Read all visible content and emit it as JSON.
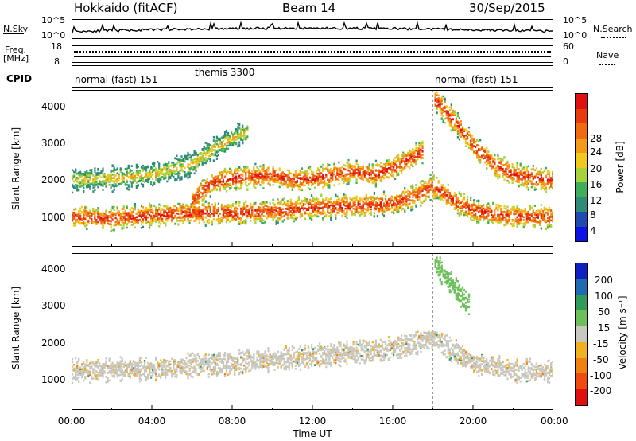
{
  "header": {
    "station": "Hokkaido (fitACF)",
    "beam": "Beam 14",
    "date": "30/Sep/2015"
  },
  "top_panels": {
    "nsky_label": "N.Sky",
    "nsky_ticks_left": [
      "10^5",
      "10^0"
    ],
    "nsky_ticks_right": [
      "10^5",
      "10^0"
    ],
    "nsearch_label": "N.Search",
    "freq_label_1": "Freq.",
    "freq_label_2": "[MHz]",
    "freq_ticks_left": [
      "18",
      "8"
    ],
    "freq_ticks_right": [
      "60",
      "0"
    ],
    "nave_label": "Nave",
    "cpid_label": "CPID",
    "cpid_segments": [
      "normal (fast) 151",
      "themis 3300",
      "normal (fast) 151"
    ]
  },
  "chart_data": [
    {
      "type": "heatmap",
      "title": "",
      "xlabel": "Time UT",
      "ylabel": "Slant Range [km]",
      "x_ticks": [
        "00:00",
        "04:00",
        "08:00",
        "12:00",
        "16:00",
        "20:00",
        "00:00"
      ],
      "y_ticks": [
        "1000",
        "2000",
        "3000",
        "4000"
      ],
      "xlim_hours": [
        0,
        24
      ],
      "ylim_km": [
        200,
        4500
      ],
      "colorbar": {
        "label": "Power [dB]",
        "ticks": [
          "4",
          "8",
          "12",
          "16",
          "20",
          "24",
          "28"
        ],
        "colors": [
          "#0a14e6",
          "#1f4bb0",
          "#2f8a7a",
          "#3fae5a",
          "#a6d23a",
          "#f2c81a",
          "#f59a16",
          "#f06a10",
          "#e83a0a",
          "#e01010"
        ]
      },
      "bands": [
        {
          "name": "low",
          "points": [
            [
              0,
              1050
            ],
            [
              2,
              1000
            ],
            [
              4,
              1100
            ],
            [
              6,
              1150
            ],
            [
              8,
              1150
            ],
            [
              10,
              1200
            ],
            [
              12,
              1300
            ],
            [
              14,
              1350
            ],
            [
              16,
              1400
            ],
            [
              17,
              1600
            ],
            [
              18,
              1900
            ],
            [
              19,
              1500
            ],
            [
              20,
              1200
            ],
            [
              22,
              1050
            ],
            [
              24,
              1050
            ]
          ]
        },
        {
          "name": "mid",
          "points": [
            [
              6,
              1500
            ],
            [
              7,
              2000
            ],
            [
              8,
              2100
            ],
            [
              10,
              2200
            ],
            [
              11,
              2050
            ],
            [
              12,
              2100
            ],
            [
              14,
              2300
            ],
            [
              15,
              2200
            ],
            [
              16,
              2400
            ],
            [
              17,
              2700
            ],
            [
              17.5,
              2900
            ]
          ]
        },
        {
          "name": "high",
          "points": [
            [
              0,
              2050
            ],
            [
              2,
              2100
            ],
            [
              4,
              2200
            ],
            [
              6,
              2500
            ],
            [
              7,
              2900
            ],
            [
              8,
              3200
            ],
            [
              8.8,
              3400
            ]
          ]
        },
        {
          "name": "receding",
          "points": [
            [
              18,
              4300
            ],
            [
              19,
              3700
            ],
            [
              20,
              3000
            ],
            [
              21,
              2500
            ],
            [
              22,
              2200
            ],
            [
              23,
              2100
            ],
            [
              24,
              2050
            ]
          ]
        }
      ]
    },
    {
      "type": "heatmap",
      "title": "",
      "xlabel": "Time UT",
      "ylabel": "Slant Range [km]",
      "x_ticks": [
        "00:00",
        "04:00",
        "08:00",
        "12:00",
        "16:00",
        "20:00",
        "00:00"
      ],
      "y_ticks": [
        "1000",
        "2000",
        "3000",
        "4000"
      ],
      "xlim_hours": [
        0,
        24
      ],
      "ylim_km": [
        200,
        4500
      ],
      "colorbar": {
        "label": "Velocity [m s⁻¹]",
        "ticks": [
          "200",
          "100",
          "50",
          "15",
          "-15",
          "-50",
          "-100",
          "-200"
        ],
        "colors": [
          "#1020c0",
          "#1f6ab0",
          "#2f9a5a",
          "#6cc05a",
          "#c8c8c0",
          "#f0b020",
          "#f08010",
          "#f04a10",
          "#e01010"
        ]
      },
      "bands": [
        {
          "name": "ground",
          "points": [
            [
              0,
              1300
            ],
            [
              4,
              1350
            ],
            [
              6,
              1450
            ],
            [
              8,
              1500
            ],
            [
              10,
              1600
            ],
            [
              12,
              1700
            ],
            [
              14,
              1800
            ],
            [
              16,
              1900
            ],
            [
              18,
              2200
            ],
            [
              20,
              1500
            ],
            [
              22,
              1300
            ],
            [
              24,
              1300
            ]
          ]
        },
        {
          "name": "green_streak",
          "points": [
            [
              18,
              4300
            ],
            [
              19,
              3600
            ],
            [
              19.8,
              3100
            ]
          ]
        }
      ]
    }
  ]
}
